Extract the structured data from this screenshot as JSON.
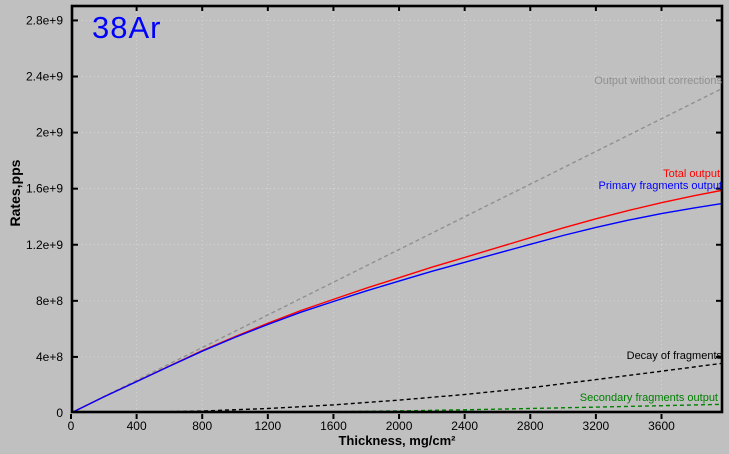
{
  "window": {
    "background": "#c0c0c0"
  },
  "chart": {
    "isotope_label": "38Ar",
    "isotope_color": "#0000ff",
    "xlabel": "Thickness, mg/cm²",
    "ylabel": "Rates,pps"
  },
  "chart_data": {
    "type": "line",
    "title": "38Ar",
    "xlabel": "Thickness, mg/cm²",
    "ylabel": "Rates,pps",
    "xlim": [
      0,
      3975
    ],
    "ylim": [
      0,
      2910000000
    ],
    "grid": "dotted",
    "legend_position": "inline-right",
    "x_ticks": {
      "values": [
        0,
        400,
        800,
        1200,
        1600,
        2000,
        2400,
        2800,
        3200,
        3600
      ],
      "labels": [
        "0",
        "400",
        "800",
        "1200",
        "1600",
        "2000",
        "2400",
        "2800",
        "3200",
        "3600"
      ]
    },
    "y_ticks": {
      "values": [
        0,
        400000000,
        800000000,
        1200000000,
        1600000000,
        2000000000,
        2400000000,
        2800000000
      ],
      "labels": [
        "0",
        "4e+8",
        "8e+8",
        "1.2e+9",
        "1.6e+9",
        "2e+9",
        "2.4e+9",
        "2.8e+9"
      ]
    },
    "series": [
      {
        "id": "output_without_corrections",
        "label": "Output without corrections",
        "color": "#909090",
        "line_style": "dashed",
        "points": [
          [
            0,
            0
          ],
          [
            500,
            291500000
          ],
          [
            1000,
            583000000
          ],
          [
            1500,
            874500000
          ],
          [
            2000,
            1166000000
          ],
          [
            2500,
            1457500000
          ],
          [
            3000,
            1749000000
          ],
          [
            3500,
            2040500000
          ],
          [
            3975,
            2317000000
          ]
        ]
      },
      {
        "id": "total_output",
        "label": "Total output",
        "color": "#ff0000",
        "line_style": "solid",
        "points": [
          [
            0,
            0
          ],
          [
            200,
            115000000
          ],
          [
            400,
            225000000
          ],
          [
            600,
            335000000
          ],
          [
            800,
            445000000
          ],
          [
            1000,
            545000000
          ],
          [
            1200,
            640000000
          ],
          [
            1400,
            730000000
          ],
          [
            1600,
            810000000
          ],
          [
            1800,
            890000000
          ],
          [
            2000,
            965000000
          ],
          [
            2200,
            1040000000
          ],
          [
            2400,
            1110000000
          ],
          [
            2600,
            1180000000
          ],
          [
            2800,
            1250000000
          ],
          [
            3000,
            1320000000
          ],
          [
            3200,
            1385000000
          ],
          [
            3400,
            1445000000
          ],
          [
            3600,
            1500000000
          ],
          [
            3800,
            1550000000
          ],
          [
            3975,
            1590000000
          ]
        ]
      },
      {
        "id": "primary_fragments_output",
        "label": "Primary fragments output",
        "color": "#0000ff",
        "line_style": "solid",
        "points": [
          [
            0,
            0
          ],
          [
            200,
            114800000
          ],
          [
            400,
            224000000
          ],
          [
            600,
            332800000
          ],
          [
            800,
            441000000
          ],
          [
            1000,
            539000000
          ],
          [
            1200,
            631000000
          ],
          [
            1400,
            718000000
          ],
          [
            1600,
            795000000
          ],
          [
            1800,
            871000000
          ],
          [
            2000,
            941000000
          ],
          [
            2200,
            1011000000
          ],
          [
            2400,
            1075000000
          ],
          [
            2600,
            1139000000
          ],
          [
            2800,
            1203000000
          ],
          [
            3000,
            1266000000
          ],
          [
            3200,
            1324000000
          ],
          [
            3400,
            1376000000
          ],
          [
            3600,
            1422000000
          ],
          [
            3800,
            1463000000
          ],
          [
            3975,
            1495000000
          ]
        ]
      },
      {
        "id": "decay_of_fragments",
        "label": "Decay of fragments",
        "color": "#000000",
        "line_style": "dashed",
        "points": [
          [
            0,
            0
          ],
          [
            400,
            4000000
          ],
          [
            800,
            14000000
          ],
          [
            1200,
            32000000
          ],
          [
            1600,
            58000000
          ],
          [
            2000,
            92000000
          ],
          [
            2400,
            132000000
          ],
          [
            2800,
            180000000
          ],
          [
            3200,
            238000000
          ],
          [
            3600,
            298000000
          ],
          [
            3975,
            355000000
          ]
        ]
      },
      {
        "id": "secondary_fragments_output",
        "label": "Secondary fragments output",
        "color": "#008000",
        "line_style": "dashed",
        "points": [
          [
            0,
            0
          ],
          [
            400,
            500000
          ],
          [
            800,
            2000000
          ],
          [
            1200,
            5000000
          ],
          [
            1600,
            9000000
          ],
          [
            2000,
            15000000
          ],
          [
            2400,
            23000000
          ],
          [
            2800,
            32000000
          ],
          [
            3200,
            42000000
          ],
          [
            3600,
            52000000
          ],
          [
            3975,
            62000000
          ]
        ]
      }
    ]
  }
}
